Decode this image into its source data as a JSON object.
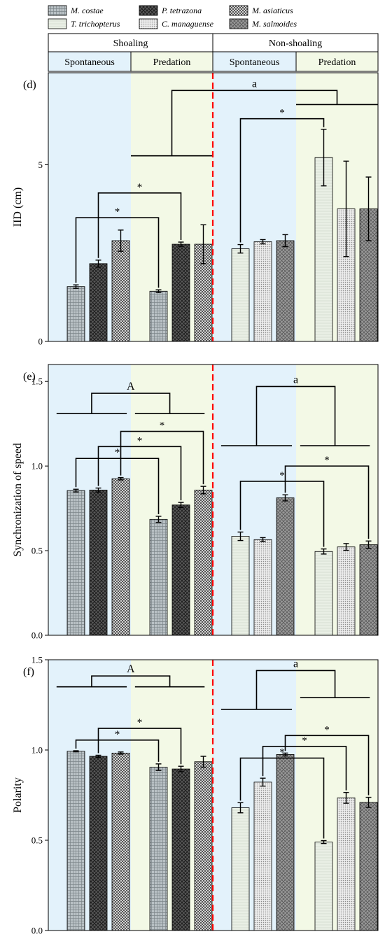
{
  "legend": {
    "entries": [
      {
        "name": "M. costae",
        "pattern": "grid-fine"
      },
      {
        "name": "P. tetrazona",
        "pattern": "dark-diamond"
      },
      {
        "name": "M. asiaticus",
        "pattern": "checker"
      },
      {
        "name": "T. trichopterus",
        "pattern": "pale"
      },
      {
        "name": "C. managuense",
        "pattern": "dots"
      },
      {
        "name": "M. salmoides",
        "pattern": "mid-diamond"
      }
    ]
  },
  "header": {
    "groups": [
      "Shoaling",
      "Non-shoaling"
    ],
    "conditions": [
      "Spontaneous",
      "Predation",
      "Spontaneous",
      "Predation"
    ]
  },
  "colors": {
    "spontaneous_bg": "#e3f2fb",
    "predation_bg": "#f3f9e6",
    "divider": "#ff0000"
  },
  "chart_data": [
    {
      "type": "bar",
      "panel_label": "(d)",
      "ylabel": "IID (cm)",
      "ylim": [
        0,
        7.6
      ],
      "yticks": [
        0,
        5
      ],
      "yticklabels": [
        "0",
        "5"
      ],
      "categories": [
        "Shoaling Spontaneous",
        "Shoaling Predation",
        "Non-shoaling Spontaneous",
        "Non-shoaling Predation"
      ],
      "bars": [
        {
          "group": 0,
          "species": 0,
          "value": 1.55,
          "err": 0.05
        },
        {
          "group": 0,
          "species": 1,
          "value": 2.2,
          "err": 0.1
        },
        {
          "group": 0,
          "species": 2,
          "value": 2.85,
          "err": 0.3
        },
        {
          "group": 1,
          "species": 0,
          "value": 1.42,
          "err": 0.04
        },
        {
          "group": 1,
          "species": 1,
          "value": 2.75,
          "err": 0.06
        },
        {
          "group": 1,
          "species": 2,
          "value": 2.75,
          "err": 0.55
        },
        {
          "group": 2,
          "species": 3,
          "value": 2.62,
          "err": 0.12
        },
        {
          "group": 2,
          "species": 4,
          "value": 2.82,
          "err": 0.06
        },
        {
          "group": 2,
          "species": 5,
          "value": 2.85,
          "err": 0.17
        },
        {
          "group": 3,
          "species": 3,
          "value": 5.2,
          "err": 0.8
        },
        {
          "group": 3,
          "species": 4,
          "value": 3.75,
          "err": 1.35
        },
        {
          "group": 3,
          "species": 5,
          "value": 3.75,
          "err": 0.9
        }
      ],
      "star_brackets": [
        {
          "from": 0,
          "to": 3,
          "level": 3.5,
          "label": "*"
        },
        {
          "from": 1,
          "to": 4,
          "level": 4.2,
          "label": "*"
        },
        {
          "from": 6,
          "to": 9,
          "level": 6.3,
          "label": "*"
        }
      ],
      "group_brackets": [
        {
          "lines": [
            {
              "x0": 1.0,
              "x1": 2.0,
              "y": 5.25
            },
            {
              "x0": 3.0,
              "x1": 4.0,
              "y": 6.7
            }
          ],
          "top": 7.1,
          "label": "a"
        }
      ]
    },
    {
      "type": "bar",
      "panel_label": "(e)",
      "ylabel": "Synchronization of speed",
      "ylim": [
        0,
        1.6
      ],
      "yticks": [
        0,
        0.5,
        1.0,
        1.5
      ],
      "yticklabels": [
        "0.0",
        "0.5",
        "1.0",
        "1.5"
      ],
      "categories": [
        "Shoaling Spontaneous",
        "Shoaling Predation",
        "Non-shoaling Spontaneous",
        "Non-shoaling Predation"
      ],
      "bars": [
        {
          "group": 0,
          "species": 0,
          "value": 0.855,
          "err": 0.008
        },
        {
          "group": 0,
          "species": 1,
          "value": 0.858,
          "err": 0.012
        },
        {
          "group": 0,
          "species": 2,
          "value": 0.925,
          "err": 0.007
        },
        {
          "group": 1,
          "species": 0,
          "value": 0.685,
          "err": 0.018
        },
        {
          "group": 1,
          "species": 1,
          "value": 0.77,
          "err": 0.015
        },
        {
          "group": 1,
          "species": 2,
          "value": 0.858,
          "err": 0.022
        },
        {
          "group": 2,
          "species": 3,
          "value": 0.585,
          "err": 0.025
        },
        {
          "group": 2,
          "species": 4,
          "value": 0.565,
          "err": 0.012
        },
        {
          "group": 2,
          "species": 5,
          "value": 0.812,
          "err": 0.018
        },
        {
          "group": 3,
          "species": 3,
          "value": 0.495,
          "err": 0.015
        },
        {
          "group": 3,
          "species": 4,
          "value": 0.522,
          "err": 0.02
        },
        {
          "group": 3,
          "species": 5,
          "value": 0.535,
          "err": 0.022
        }
      ],
      "star_brackets": [
        {
          "from": 0,
          "to": 3,
          "level": 1.045,
          "label": "*"
        },
        {
          "from": 1,
          "to": 4,
          "level": 1.115,
          "label": "*"
        },
        {
          "from": 2,
          "to": 5,
          "level": 1.205,
          "label": "*"
        },
        {
          "from": 6,
          "to": 9,
          "level": 0.91,
          "label": "*"
        },
        {
          "from": 8,
          "to": 11,
          "level": 1.0,
          "label": "*"
        }
      ],
      "group_brackets": [
        {
          "lines": [
            {
              "x0": 0.1,
              "x1": 0.95,
              "y": 1.31
            },
            {
              "x0": 1.05,
              "x1": 1.9,
              "y": 1.31
            }
          ],
          "top": 1.43,
          "label": "A"
        },
        {
          "lines": [
            {
              "x0": 2.1,
              "x1": 2.95,
              "y": 1.12
            },
            {
              "x0": 3.05,
              "x1": 3.9,
              "y": 1.12
            }
          ],
          "top": 1.47,
          "label": "a"
        }
      ]
    },
    {
      "type": "bar",
      "panel_label": "(f)",
      "ylabel": "Polarity",
      "ylim": [
        0,
        1.5
      ],
      "yticks": [
        0,
        0.5,
        1.0,
        1.5
      ],
      "yticklabels": [
        "0.0",
        "0.5",
        "1.0",
        "1.5"
      ],
      "categories": [
        "Shoaling Spontaneous",
        "Shoaling Predation",
        "Non-shoaling Spontaneous",
        "Non-shoaling Predation"
      ],
      "bars": [
        {
          "group": 0,
          "species": 0,
          "value": 0.993,
          "err": 0.003
        },
        {
          "group": 0,
          "species": 1,
          "value": 0.965,
          "err": 0.006
        },
        {
          "group": 0,
          "species": 2,
          "value": 0.983,
          "err": 0.006
        },
        {
          "group": 1,
          "species": 0,
          "value": 0.905,
          "err": 0.018
        },
        {
          "group": 1,
          "species": 1,
          "value": 0.895,
          "err": 0.015
        },
        {
          "group": 1,
          "species": 2,
          "value": 0.935,
          "err": 0.03
        },
        {
          "group": 2,
          "species": 3,
          "value": 0.68,
          "err": 0.028
        },
        {
          "group": 2,
          "species": 4,
          "value": 0.822,
          "err": 0.022
        },
        {
          "group": 2,
          "species": 5,
          "value": 0.975,
          "err": 0.008
        },
        {
          "group": 3,
          "species": 3,
          "value": 0.49,
          "err": 0.008
        },
        {
          "group": 3,
          "species": 4,
          "value": 0.735,
          "err": 0.03
        },
        {
          "group": 3,
          "species": 5,
          "value": 0.71,
          "err": 0.028
        }
      ],
      "star_brackets": [
        {
          "from": 0,
          "to": 3,
          "level": 1.055,
          "label": "*"
        },
        {
          "from": 1,
          "to": 4,
          "level": 1.12,
          "label": "*"
        },
        {
          "from": 6,
          "to": 9,
          "level": 0.955,
          "label": "*"
        },
        {
          "from": 7,
          "to": 10,
          "level": 1.02,
          "label": "*"
        },
        {
          "from": 8,
          "to": 11,
          "level": 1.08,
          "label": "*"
        }
      ],
      "group_brackets": [
        {
          "lines": [
            {
              "x0": 0.1,
              "x1": 0.95,
              "y": 1.35
            },
            {
              "x0": 1.05,
              "x1": 1.9,
              "y": 1.35
            }
          ],
          "top": 1.41,
          "label": "A"
        },
        {
          "lines": [
            {
              "x0": 2.1,
              "x1": 2.95,
              "y": 1.225
            },
            {
              "x0": 3.05,
              "x1": 3.9,
              "y": 1.29
            }
          ],
          "top": 1.44,
          "label": "a"
        }
      ]
    }
  ]
}
